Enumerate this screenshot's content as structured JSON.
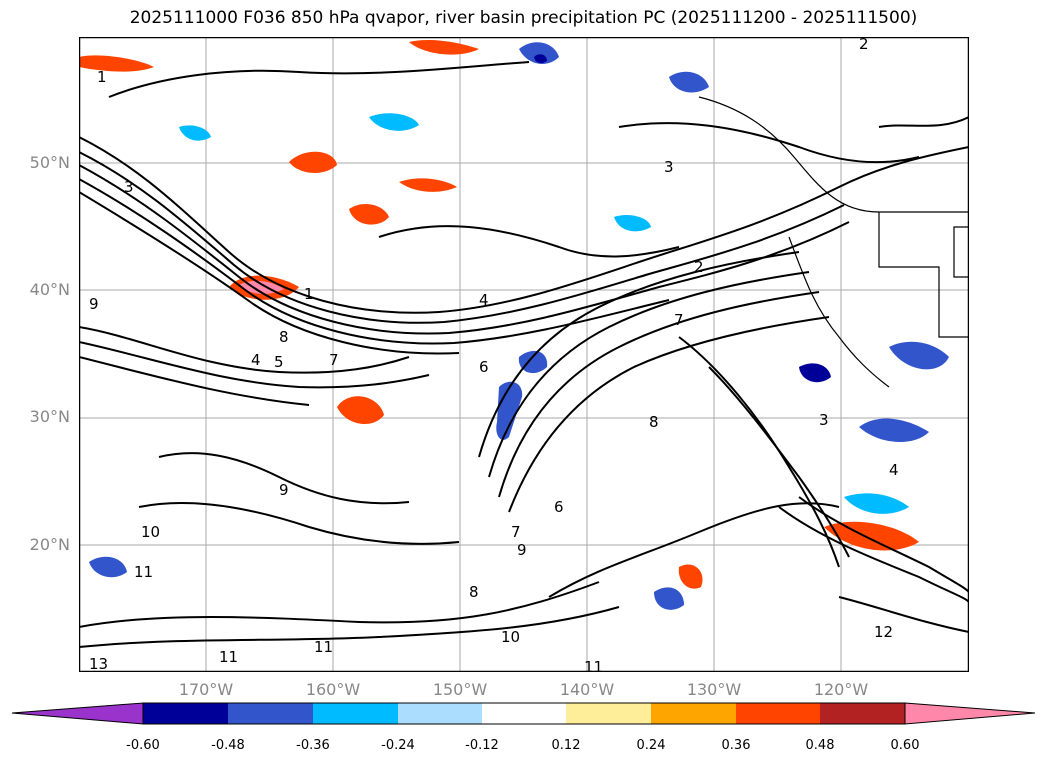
{
  "title": "2025111000 F036 850 hPa qvapor, river basin precipitation PC (2025111200 - 2025111500)",
  "map": {
    "lat_labels": [
      "50°N",
      "40°N",
      "30°N",
      "20°N"
    ],
    "lon_labels": [
      "170°W",
      "160°W",
      "150°W",
      "140°W",
      "130°W",
      "120°W"
    ],
    "extent": {
      "lon_min": -180,
      "lon_max": -110,
      "lat_min": 10,
      "lat_max": 60
    },
    "contour_labels": [
      "1",
      "2",
      "3",
      "4",
      "5",
      "6",
      "7",
      "8",
      "9",
      "10",
      "11",
      "12",
      "13"
    ]
  },
  "colorbar": {
    "ticks": [
      "-0.60",
      "-0.48",
      "-0.36",
      "-0.24",
      "-0.12",
      "0.12",
      "0.24",
      "0.36",
      "0.48",
      "0.60"
    ],
    "colors": [
      "#9933cc",
      "#000099",
      "#3355cc",
      "#00bbff",
      "#aaddff",
      "#ffffff",
      "#ffee99",
      "#ffa500",
      "#ff4400",
      "#b22222",
      "#ff88aa"
    ]
  }
}
